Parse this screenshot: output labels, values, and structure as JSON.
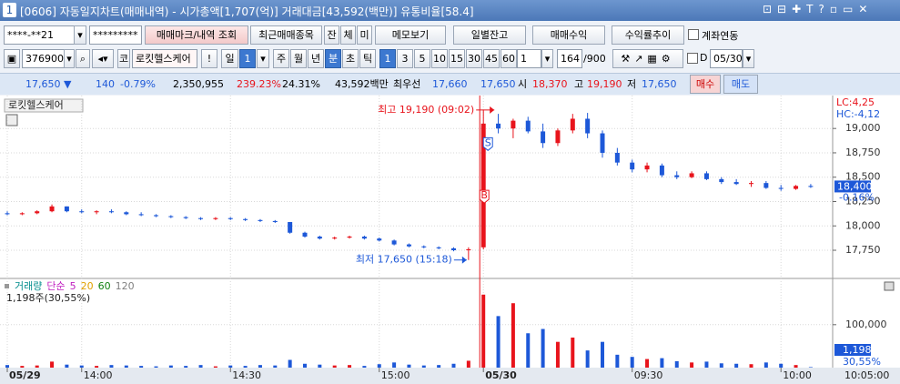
{
  "window": {
    "number": "1",
    "title": "[0606] 자동일지차트(매매내역) - 시가총액[1,707(억)] 거래대금[43,592(백만)] 유통비율[58.4]"
  },
  "toolbar1": {
    "account": "****-**21",
    "password": "*********",
    "mark_button": "매매마크/내역 조회",
    "recent_button": "최근매매종목",
    "small_buttons": [
      "잔",
      "체",
      "미"
    ],
    "memo_button": "메모보기",
    "right_buttons": [
      "일별잔고",
      "매매수익",
      "수익률추이"
    ],
    "link_checkbox": "계좌연동"
  },
  "toolbar2": {
    "code": "376900",
    "market": "코",
    "name": "로킷헬스케어",
    "alert": "!",
    "period": "일",
    "period_count": "1",
    "periods": [
      "주",
      "월",
      "년",
      "분",
      "초",
      "틱"
    ],
    "intervals": [
      "1",
      "3",
      "5",
      "10",
      "15",
      "30",
      "45",
      "60"
    ],
    "unit": "1",
    "count": "164",
    "max": "/900",
    "date_flag": "D",
    "date": "05/30"
  },
  "infobar": {
    "price": "17,650 ▼",
    "change": "140",
    "change_rate": "-0.79%",
    "volume": "2,350,955",
    "volume_rate": "239.23%",
    "turnover": "24.31%",
    "amount": "43,592백만",
    "best_label": "최우선",
    "ask": "17,660",
    "bid": "17,650",
    "open_label": "시",
    "open": "18,370",
    "high_label": "고",
    "high": "19,190",
    "low_label": "저",
    "low": "17,650",
    "buy_button": "매수",
    "sell_button": "매도"
  },
  "chart_data": [
    {
      "type": "candlestick",
      "panel_label": "로킷헬스케어",
      "lc_label": "LC:4,25",
      "hc_label": "HC:-4,12",
      "last_label": {
        "value": 18400,
        "label": "18,400"
      },
      "change_label": "-0.16%",
      "grid": true,
      "up_color": "#e8141c",
      "down_color": "#1d58d8",
      "categories": [
        "05/29",
        null,
        null,
        null,
        null,
        "14:00",
        null,
        null,
        null,
        null,
        null,
        null,
        null,
        null,
        null,
        "14:30",
        null,
        null,
        null,
        null,
        null,
        null,
        null,
        null,
        null,
        "15:00",
        null,
        null,
        null,
        null,
        null,
        null,
        "05/30",
        null,
        null,
        null,
        null,
        null,
        null,
        null,
        null,
        null,
        "09:30",
        null,
        null,
        null,
        null,
        null,
        null,
        null,
        null,
        null,
        "10:00",
        null,
        null
      ],
      "series": [
        {
          "name": "로킷헬스케어",
          "values": [
            [
              18130,
              18150,
              18110,
              18120
            ],
            [
              18120,
              18140,
              18110,
              18130
            ],
            [
              18130,
              18160,
              18120,
              18150
            ],
            [
              18150,
              18220,
              18140,
              18200
            ],
            [
              18200,
              18200,
              18140,
              18150
            ],
            [
              18150,
              18170,
              18130,
              18140
            ],
            [
              18140,
              18160,
              18120,
              18150
            ],
            [
              18150,
              18170,
              18130,
              18140
            ],
            [
              18140,
              18150,
              18110,
              18120
            ],
            [
              18120,
              18140,
              18100,
              18110
            ],
            [
              18110,
              18120,
              18090,
              18100
            ],
            [
              18100,
              18110,
              18080,
              18090
            ],
            [
              18090,
              18100,
              18070,
              18080
            ],
            [
              18080,
              18090,
              18060,
              18070
            ],
            [
              18070,
              18090,
              18060,
              18080
            ],
            [
              18080,
              18090,
              18060,
              18070
            ],
            [
              18070,
              18080,
              18050,
              18060
            ],
            [
              18060,
              18070,
              18040,
              18050
            ],
            [
              18050,
              18060,
              18030,
              18040
            ],
            [
              18040,
              18040,
              17920,
              17930
            ],
            [
              17930,
              17940,
              17880,
              17890
            ],
            [
              17890,
              17900,
              17860,
              17870
            ],
            [
              17870,
              17890,
              17860,
              17880
            ],
            [
              17880,
              17900,
              17870,
              17890
            ],
            [
              17890,
              17900,
              17860,
              17870
            ],
            [
              17870,
              17880,
              17840,
              17850
            ],
            [
              17850,
              17860,
              17800,
              17810
            ],
            [
              17810,
              17820,
              17780,
              17790
            ],
            [
              17790,
              17800,
              17770,
              17780
            ],
            [
              17780,
              17790,
              17760,
              17770
            ],
            [
              17770,
              17780,
              17740,
              17750
            ],
            [
              17750,
              17780,
              17650,
              17760
            ],
            [
              17780,
              19190,
              17760,
              19050
            ],
            [
              19050,
              19150,
              18950,
              19000
            ],
            [
              19000,
              19100,
              18900,
              19080
            ],
            [
              19080,
              19120,
              18950,
              18970
            ],
            [
              18970,
              19050,
              18800,
              18850
            ],
            [
              18850,
              19000,
              18820,
              18980
            ],
            [
              18980,
              19150,
              18950,
              19100
            ],
            [
              19100,
              19160,
              18900,
              18950
            ],
            [
              18950,
              18980,
              18700,
              18750
            ],
            [
              18750,
              18800,
              18620,
              18650
            ],
            [
              18650,
              18680,
              18550,
              18580
            ],
            [
              18580,
              18650,
              18550,
              18620
            ],
            [
              18620,
              18640,
              18500,
              18520
            ],
            [
              18520,
              18560,
              18480,
              18500
            ],
            [
              18500,
              18560,
              18490,
              18540
            ],
            [
              18540,
              18560,
              18470,
              18480
            ],
            [
              18480,
              18500,
              18430,
              18450
            ],
            [
              18450,
              18480,
              18420,
              18430
            ],
            [
              18430,
              18460,
              18400,
              18440
            ],
            [
              18440,
              18460,
              18380,
              18390
            ],
            [
              18390,
              18420,
              18360,
              18380
            ],
            [
              18380,
              18420,
              18370,
              18410
            ],
            [
              18410,
              18430,
              18390,
              18400
            ]
          ]
        }
      ],
      "ylim": [
        17470,
        19310
      ],
      "yticks": [
        {
          "value": 17750,
          "label": "17,750"
        },
        {
          "value": 18000,
          "label": "18,000"
        },
        {
          "value": 18250,
          "label": "18,250"
        },
        {
          "value": 18500,
          "label": "18,500"
        },
        {
          "value": 18750,
          "label": "18,750"
        },
        {
          "value": 19000,
          "label": "19,000"
        }
      ],
      "annotations": [
        {
          "text": "최고 19,190 (09:02)",
          "value": 19190,
          "index": 32,
          "color": "#e8141c"
        },
        {
          "text": "최저 17,650 (15:18)",
          "value": 17650,
          "index": 31,
          "color": "#1d58d8"
        }
      ],
      "trade_marks": [
        {
          "label": "S",
          "value": 18840,
          "index": 32,
          "color": "#1d58d8"
        },
        {
          "label": "B",
          "value": 18300,
          "index": 32,
          "color": "#e8141c"
        }
      ],
      "time_label": "10:05:00"
    },
    {
      "type": "bar",
      "legend": [
        "거래량",
        "단순",
        "5",
        "20",
        "60",
        "120"
      ],
      "legend_colors": [
        "#008c8c",
        "#c020c0",
        "#c020c0",
        "#e0a000",
        "#108010",
        "#808080"
      ],
      "current_label": "1,198주(30,55%)",
      "last_label": "1,198",
      "ratio_label": "30,55%",
      "series": [
        {
          "name": "거래량",
          "values": [
            6000,
            4000,
            5000,
            14000,
            7000,
            5000,
            4000,
            6000,
            5000,
            4000,
            3000,
            5000,
            4000,
            6000,
            3000,
            5000,
            4000,
            6000,
            5000,
            18000,
            9000,
            7000,
            5000,
            6000,
            4000,
            8000,
            12000,
            7000,
            5000,
            6000,
            9000,
            16000,
            170000,
            120000,
            150000,
            80000,
            90000,
            60000,
            70000,
            40000,
            60000,
            30000,
            25000,
            20000,
            22000,
            15000,
            12000,
            14000,
            10000,
            9000,
            8000,
            12000,
            9000,
            6000,
            1198
          ]
        }
      ],
      "ylim": [
        0,
        178000
      ],
      "yticks": [
        {
          "value": 100000,
          "label": "100,000"
        }
      ]
    }
  ]
}
